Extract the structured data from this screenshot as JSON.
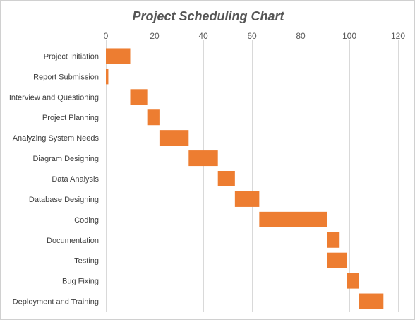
{
  "chart_data": {
    "type": "bar",
    "orientation": "horizontal",
    "subtype": "gantt",
    "title": "Project Scheduling Chart",
    "xlabel": "",
    "ylabel": "",
    "xlim": [
      0,
      120
    ],
    "x_ticks": [
      0,
      20,
      40,
      60,
      80,
      100,
      120
    ],
    "x_axis_position": "top",
    "grid": true,
    "legend": "none",
    "bar_color": "#ED7D31",
    "categories": [
      "Project Initiation",
      "Report Submission",
      "Interview and Questioning",
      "Project Planning",
      "Analyzing System Needs",
      "Diagram Designing",
      "Data Analysis",
      "Database Designing",
      "Coding",
      "Documentation",
      "Testing",
      "Bug Fixing",
      "Deployment and Training"
    ],
    "start": [
      0,
      0,
      10,
      17,
      22,
      34,
      46,
      53,
      63,
      91,
      91,
      99,
      104
    ],
    "duration": [
      10,
      1,
      7,
      5,
      12,
      12,
      7,
      10,
      28,
      5,
      8,
      5,
      10
    ]
  }
}
